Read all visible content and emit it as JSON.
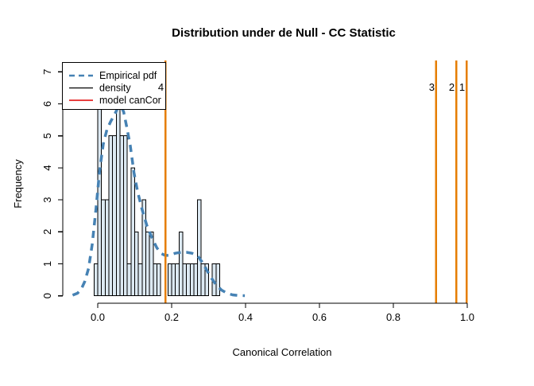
{
  "title": "Distribution under de Null - CC Statistic",
  "chart_data": {
    "type": "bar",
    "subtype": "histogram-with-density",
    "xlabel": "Canonical Correlation",
    "ylabel": "Frequency",
    "xlim": [
      -0.095,
      1.03
    ],
    "ylim": [
      0,
      7.33
    ],
    "grid": false,
    "x_ticks": [
      "0.0",
      "0.2",
      "0.4",
      "0.6",
      "0.8",
      "1.0"
    ],
    "x_tick_values": [
      0.0,
      0.2,
      0.4,
      0.6,
      0.8,
      1.0
    ],
    "y_ticks": [
      "0",
      "1",
      "2",
      "3",
      "4",
      "5",
      "6",
      "7"
    ],
    "y_tick_values": [
      0,
      1,
      2,
      3,
      4,
      5,
      6,
      7
    ],
    "histogram": {
      "bin_start": -0.01,
      "bin_width": 0.01,
      "frequencies": [
        1,
        6,
        3,
        3,
        5,
        5,
        6,
        5,
        5,
        1,
        4,
        2,
        1,
        3,
        2,
        2,
        1,
        1,
        0,
        0,
        1,
        1,
        1,
        2,
        1,
        1,
        1,
        1,
        3,
        1,
        1,
        0,
        1,
        1
      ],
      "fill": "#DCE9F2",
      "border": "#000000"
    },
    "empirical_pdf": {
      "x": [
        -0.068,
        -0.055,
        -0.045,
        -0.035,
        -0.025,
        -0.015,
        -0.005,
        0.005,
        0.015,
        0.025,
        0.035,
        0.045,
        0.055,
        0.062,
        0.07,
        0.078,
        0.088,
        0.098,
        0.108,
        0.12,
        0.133,
        0.147,
        0.16,
        0.172,
        0.183,
        0.195,
        0.21,
        0.225,
        0.24,
        0.255,
        0.27,
        0.283,
        0.295,
        0.308,
        0.32,
        0.335,
        0.35,
        0.365,
        0.38,
        0.398
      ],
      "y": [
        0.02,
        0.08,
        0.2,
        0.45,
        0.85,
        1.6,
        2.7,
        3.9,
        4.75,
        5.2,
        5.45,
        5.65,
        5.9,
        5.95,
        5.75,
        5.3,
        4.7,
        3.85,
        3.25,
        2.7,
        2.2,
        1.8,
        1.5,
        1.32,
        1.26,
        1.27,
        1.33,
        1.36,
        1.36,
        1.33,
        1.25,
        1.05,
        0.8,
        0.55,
        0.35,
        0.18,
        0.08,
        0.03,
        0.01,
        0.005
      ],
      "color": "#4682B4",
      "style": "dashed"
    },
    "vlines": [
      {
        "x": 0.183,
        "label": "4"
      },
      {
        "x": 0.916,
        "label": "3"
      },
      {
        "x": 0.97,
        "label": "2"
      },
      {
        "x": 0.998,
        "label": "1"
      }
    ],
    "vline_color": "#E67E00",
    "legend": {
      "position": "top-left",
      "items": [
        {
          "label": "Empirical pdf",
          "color": "#4682B4",
          "style": "dashed"
        },
        {
          "label": "density",
          "color": "#000000",
          "style": "solid"
        },
        {
          "label": "model canCor",
          "color": "#E00000",
          "style": "solid"
        }
      ]
    }
  }
}
